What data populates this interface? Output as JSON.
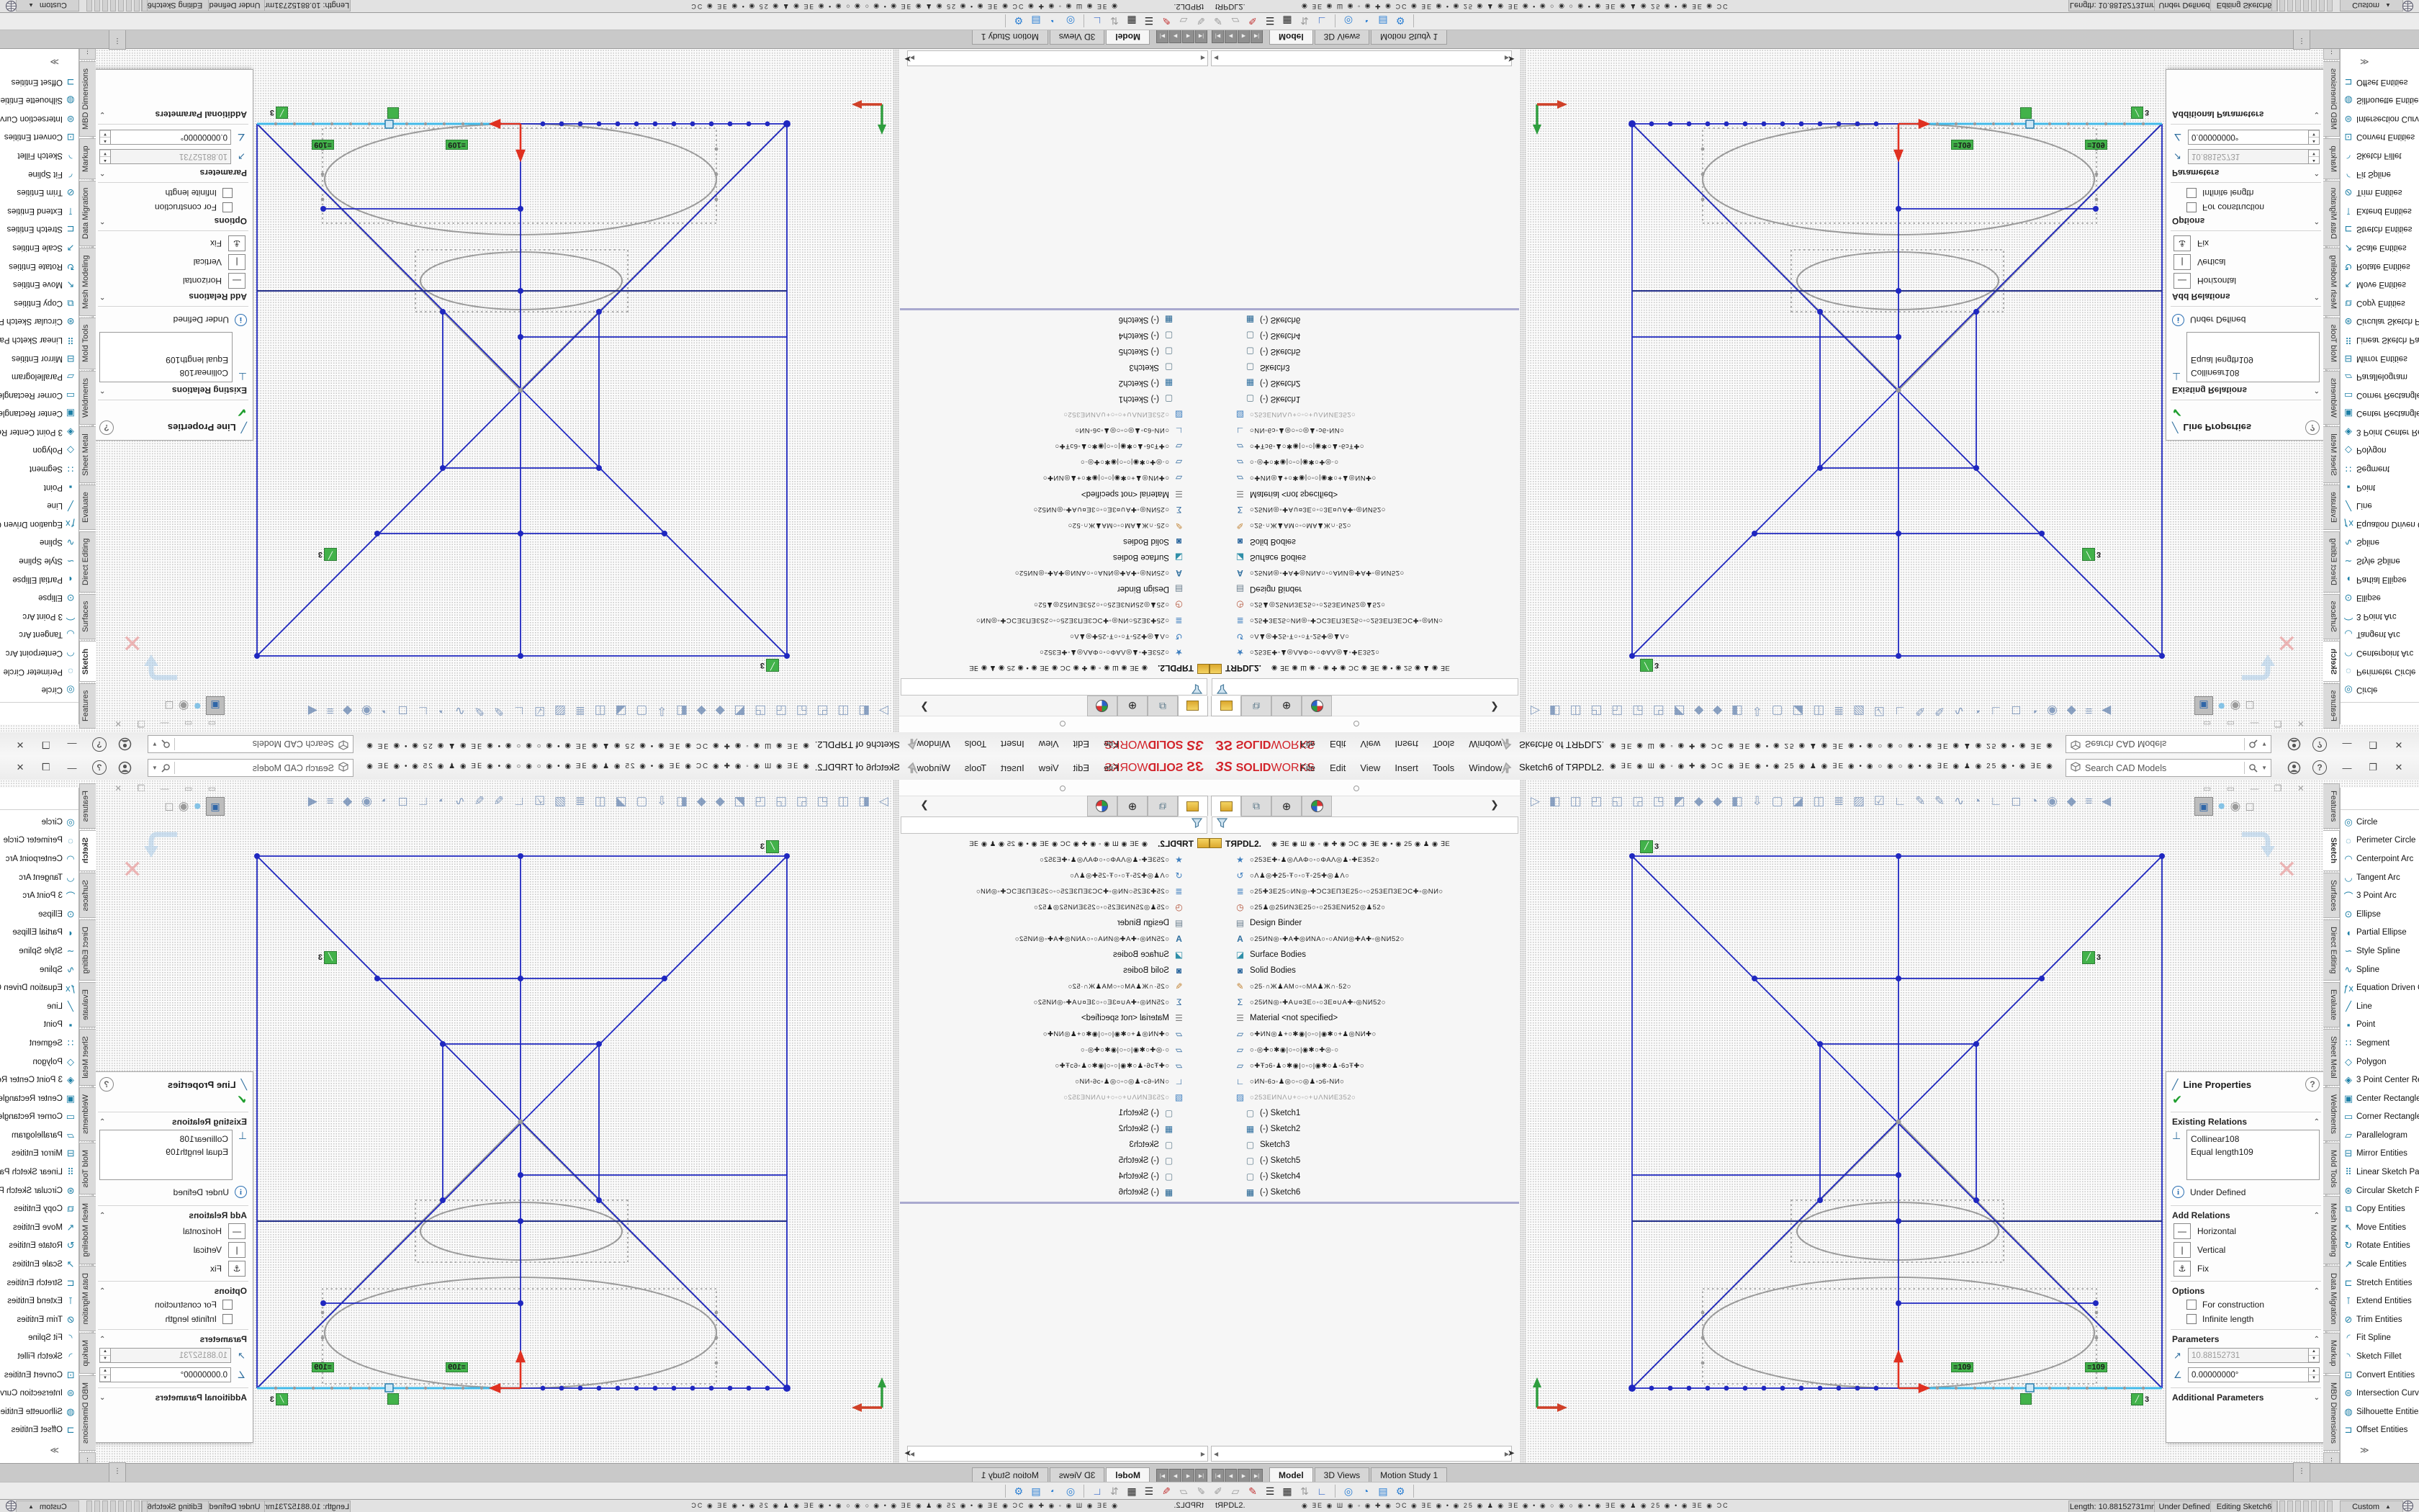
{
  "app": {
    "logo_3s": "ЗS",
    "logo_solid": "SOLID",
    "logo_works": "WORKS",
    "menus": [
      "File",
      "Edit",
      "View",
      "Insert",
      "Tools",
      "Window"
    ],
    "pin_icon": "pushpin",
    "doc_title": "Sketch6 of TЯPDL2.",
    "menubar_soup": "◉ ∃Ε ◉ Ш ◉ ◦ ◉ ✚ ◉ ƆC ◉ ∃Ε ◉ • ◉ 25 ◉ ♟ ◉ ∃Ε ◉ • ◉ ○ ◉ ○ ◉ • ◉ ∃Ε ◉ ♟ ◉ 25 ◉ • ◉ ∃Ε ◉ ƆC ◉ ✚ ◉ ◉ ‥",
    "search_placeholder": "Search CAD Models",
    "minimize": "—",
    "restore": "❐",
    "close": "✕",
    "help": "?"
  },
  "panel_tabs": {
    "chevron": "❯"
  },
  "tree": {
    "root": "TЯPDL2.",
    "root_soup": "◉ ∃Ε ◉ Ш ◉ ◦ ◉ ✚ ◉ ƆC ◉ ∃Ε ◉ • ◉ 25 ◉ ♟ ◉ ∃Ε",
    "rows": [
      {
        "icon": "star",
        "text": "○253Ε✚◦♟◎ΛΑΦ○◦○ΦΑΛ◎♟◦✚Ε352○"
      },
      {
        "icon": "history",
        "text": "○Λ♟◎✚25◦Ŧ○◦○Ŧ◦25✚◎♟Λ○"
      },
      {
        "icon": "sensors",
        "text": "○25✚3Ε25○ИΝ◎◦✚ƆC3ΕΠ3Ε25○◦○253ΕΠ3ΕƆC✚◦◎ΝИ○"
      },
      {
        "icon": "clock",
        "text": "○25♟◎25ИΝ3Ε25○◦○253ΕΝИ52◎♟52○"
      },
      {
        "icon": "binder",
        "text": "Design Binder"
      },
      {
        "icon": "annotations",
        "text": "○25ИΝ◎◦✚Α✚◎ИΝΑ○◦○ΑΝИ◎✚Α✚◦◎ΝИ52○"
      },
      {
        "icon": "surface",
        "text": "Surface Bodies"
      },
      {
        "icon": "solid",
        "text": "Solid Bodies"
      },
      {
        "icon": "markup",
        "text": "○25·∩Ж♟ΑΜ○◦○ΜΑ♟Ж∩·52○"
      },
      {
        "icon": "equations",
        "text": "○25ИΝ◎◦✚Α∪¤3Ε○◦○3Ε¤∪Α✚◦◎ΝИ52○"
      },
      {
        "icon": "material",
        "text": "Material  <not specified>"
      },
      {
        "icon": "plane",
        "text": "○✚ИΝ◎♟+○✱◉|○◦○|◉✱○+♟◎ΝИ✚○"
      },
      {
        "icon": "plane",
        "text": "○·◎✚○✱◉|○◦○|◉✱○✚◎·○"
      },
      {
        "icon": "plane",
        "text": "○✚Ŧɔ6◦♟○✱◉|○◦○|◉✱○♟◦6ɔŦ✚○"
      },
      {
        "icon": "origin",
        "text": "○ИΝ◦6ɔ◦♟◎○◦○◎♟◦ɔ6◦ΝИ○"
      },
      {
        "icon": "folder-lock",
        "text": "○253ΕИΝΛ∪+○◦○+∪ΛΝИΕ352○"
      },
      {
        "icon": "sketch",
        "text": "(-) Sketch1"
      },
      {
        "icon": "sketch-grid",
        "text": "(-) Sketch2"
      },
      {
        "icon": "sketch",
        "text": "Sketch3"
      },
      {
        "icon": "sketch",
        "text": "(-) Sketch5"
      },
      {
        "icon": "sketch",
        "text": "(-) Sketch4"
      },
      {
        "icon": "sketch-grid-active",
        "text": "(-) Sketch6"
      }
    ]
  },
  "line_properties": {
    "title": "Line Properties",
    "help": "?",
    "sections": {
      "existing_relations": "Existing Relations",
      "add_relations": "Add Relations",
      "options": "Options",
      "parameters": "Parameters",
      "additional_parameters": "Additional Parameters"
    },
    "relations": [
      "Collinear108",
      "Equal length109"
    ],
    "status": "Under Defined",
    "add_relation_buttons": [
      "Horizontal",
      "Vertical",
      "Fix"
    ],
    "option_checkboxes": [
      "For construction",
      "Infinite length"
    ],
    "length_value": "10.88152731",
    "angle_value": "0.00000000°"
  },
  "right_tabs": {
    "tabs": [
      "Features",
      "Sketch",
      "Surfaces",
      "Direct Editing",
      "Evaluate",
      "Sheet Metal",
      "Weldments",
      "Mold Tools",
      "Mesh Modeling",
      "Data Migration",
      "Markup",
      "MBD Dimensions"
    ],
    "active": "Sketch",
    "overflow": "⋮"
  },
  "sketch_tools": {
    "items": [
      {
        "g": "◎",
        "label": "Circle"
      },
      {
        "g": "◌",
        "label": "Perimeter Circle"
      },
      {
        "g": "◠",
        "label": "Centerpoint Arc"
      },
      {
        "g": "◡",
        "label": "Tangent Arc"
      },
      {
        "g": "⌒",
        "label": "3 Point Arc"
      },
      {
        "g": "⊙",
        "label": "Ellipse"
      },
      {
        "g": "◖",
        "label": "Partial Ellipse"
      },
      {
        "g": "∽",
        "label": "Style Spline"
      },
      {
        "g": "∿",
        "label": "Spline"
      },
      {
        "g": "ƒx",
        "label": "Equation Driven Curve"
      },
      {
        "g": "╱",
        "label": "Line"
      },
      {
        "g": "▪",
        "label": "Point"
      },
      {
        "g": "∷",
        "label": "Segment"
      },
      {
        "g": "◇",
        "label": "Polygon"
      },
      {
        "g": "◈",
        "label": "3 Point Center Recta..."
      },
      {
        "g": "▣",
        "label": "Center Rectangle"
      },
      {
        "g": "▭",
        "label": "Corner Rectangle"
      },
      {
        "g": "▱",
        "label": "Parallelogram"
      },
      {
        "g": "⊟",
        "label": "Mirror Entities"
      },
      {
        "g": "⠿",
        "label": "Linear Sketch Pattern"
      },
      {
        "g": "⊛",
        "label": "Circular Sketch Pattern"
      },
      {
        "g": "⧉",
        "label": "Copy Entities"
      },
      {
        "g": "↖",
        "label": "Move Entities"
      },
      {
        "g": "↻",
        "label": "Rotate Entities"
      },
      {
        "g": "↗",
        "label": "Scale Entities"
      },
      {
        "g": "⊏",
        "label": "Stretch Entities"
      },
      {
        "g": "⊺",
        "label": "Extend Entities"
      },
      {
        "g": "⊘",
        "label": "Trim Entities"
      },
      {
        "g": "◜",
        "label": "Fit Spline"
      },
      {
        "g": "◝",
        "label": "Sketch Fillet"
      },
      {
        "g": "⊡",
        "label": "Convert Entities"
      },
      {
        "g": "⊜",
        "label": "Intersection Curve"
      },
      {
        "g": "◍",
        "label": "Silhouette Entities"
      },
      {
        "g": "⊐",
        "label": "Offset Entities"
      }
    ]
  },
  "doc_tabs": {
    "nav": [
      "|◀",
      "◀",
      "▶",
      "▶|"
    ],
    "tabs": [
      "Model",
      "3D Views",
      "Motion Study 1"
    ],
    "active": "Model",
    "overflow": "⋮",
    "expand": "≫"
  },
  "bottom_toolbar": {
    "left_icons": [
      {
        "g": "✐",
        "c": "#9a9a9a"
      },
      {
        "g": "▱",
        "c": "#9a9a9a"
      },
      {
        "g": "✎",
        "c": "#c23333"
      },
      {
        "g": "☰",
        "c": "#222222"
      },
      {
        "g": "▦",
        "c": "#222222"
      },
      {
        "g": "⇅",
        "c": "#9a9a9a"
      },
      {
        "g": "∟",
        "c": "#2a62c9"
      }
    ],
    "right_icons": [
      {
        "g": "◎",
        "c": "#2b7fd4"
      },
      {
        "g": "◔",
        "c": "#2b7fd4"
      },
      {
        "g": "▤",
        "c": "#2b7fd4"
      },
      {
        "g": "⚙",
        "c": "#2b7fd4"
      }
    ]
  },
  "status_bar": {
    "doc": "tЯPDL2.",
    "soup": "◉ ∃Ε ◉ Ш ◉ ◦ ◉ ✚ ◉ ƆC ◉ ∃Ε ◉ • ◉ 25 ◉ ♟ ◉ ∃Ε ◉ • ◉  ○  ◉  ○  ◉ • ◉ ∃Ε ◉ ♟ ◉ 25 ◉ • ◉ ∃Ε ◉ ƆC",
    "length": "Length: 10.88152731mm",
    "state": "Under Defined",
    "editing": "Editing Sketch6",
    "profile": "Custom"
  },
  "graphics": {
    "ghost_toolbar": "▷ ◧ ◫ ◰ ◱ ◲ ◳ ◩ ◆ ◆ ◧ ⇩ ▢ ◪ ◫ ≣ ▨ ☑ ∟ ✎ ✎ ∿ ◔ ∟ ◻ ◔ ◉ ◆ ≡ ◀",
    "ghost_winctrl": "▭ ▭ — ❐ ✕",
    "confirm_x": "✕",
    "badges": {
      "three": "3",
      "eq109": "≡109"
    },
    "triad": {
      "x": "x",
      "y": "y"
    },
    "accent_blue": "#1f27c0",
    "selected_cyan": "#41b9e8",
    "relation_green": "#42b24a",
    "origin_red": "#e03020"
  }
}
